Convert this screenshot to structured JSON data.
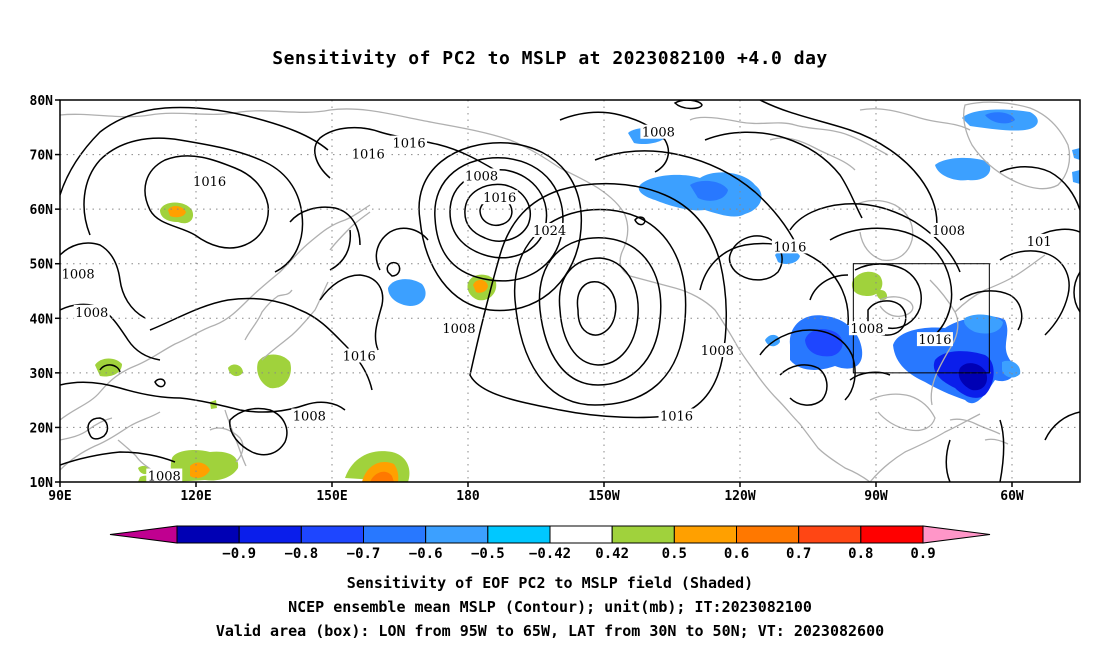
{
  "title": "Sensitivity of PC2 to MSLP at 2023082100 +4.0 day",
  "axes": {
    "lat_labels": [
      "80N",
      "70N",
      "60N",
      "50N",
      "40N",
      "30N",
      "20N",
      "10N"
    ],
    "lon_labels": [
      "90E",
      "120E",
      "150E",
      "180",
      "150W",
      "120W",
      "90W",
      "60W"
    ]
  },
  "contour_labels": [
    {
      "text": "1008",
      "lon": 222,
      "lat": 74
    },
    {
      "text": "1016",
      "lon": 167,
      "lat": 72
    },
    {
      "text": "1016",
      "lon": 158,
      "lat": 70
    },
    {
      "text": "1008",
      "lon": 183,
      "lat": 66
    },
    {
      "text": "1016",
      "lon": 123,
      "lat": 65
    },
    {
      "text": "1016",
      "lon": 187,
      "lat": 62
    },
    {
      "text": "1024",
      "lon": 198,
      "lat": 56
    },
    {
      "text": "1016",
      "lon": 251,
      "lat": 53
    },
    {
      "text": "1008",
      "lon": 286,
      "lat": 56
    },
    {
      "text": "101",
      "lon": 306,
      "lat": 54
    },
    {
      "text": "1008",
      "lon": 94,
      "lat": 48
    },
    {
      "text": "1008",
      "lon": 97,
      "lat": 41
    },
    {
      "text": "1008",
      "lon": 178,
      "lat": 38
    },
    {
      "text": "1008",
      "lon": 268,
      "lat": 38
    },
    {
      "text": "1016",
      "lon": 283,
      "lat": 36
    },
    {
      "text": "1016",
      "lon": 156,
      "lat": 33
    },
    {
      "text": "1008",
      "lon": 235,
      "lat": 34
    },
    {
      "text": "1016",
      "lon": 226,
      "lat": 22
    },
    {
      "text": "1008",
      "lon": 145,
      "lat": 22
    },
    {
      "text": "1008",
      "lon": 113,
      "lat": 11
    }
  ],
  "valid_box": {
    "lon_w": 265,
    "lon_e": 295,
    "lat_s": 30,
    "lat_n": 50
  },
  "colorbar": {
    "colors": [
      "#c00090",
      "#0000b4",
      "#0a1eeb",
      "#1e46ff",
      "#2878ff",
      "#3ca0ff",
      "#00c8ff",
      "#ffffff",
      "#a0d23c",
      "#ffa000",
      "#ff7800",
      "#ff4614",
      "#ff0000",
      "#ff96c8"
    ],
    "labels": [
      "−0.9",
      "−0.8",
      "−0.7",
      "−0.6",
      "−0.5",
      "−0.42",
      "0.42",
      "0.5",
      "0.6",
      "0.7",
      "0.8",
      "0.9"
    ]
  },
  "footer": {
    "line1": "Sensitivity of EOF PC2 to MSLP field (Shaded)",
    "line2": "NCEP ensemble mean MSLP (Contour); unit(mb); IT:2023082100",
    "line3": "Valid area (box): LON from 95W to 65W, LAT from 30N to 50N; VT: 2023082600"
  }
}
